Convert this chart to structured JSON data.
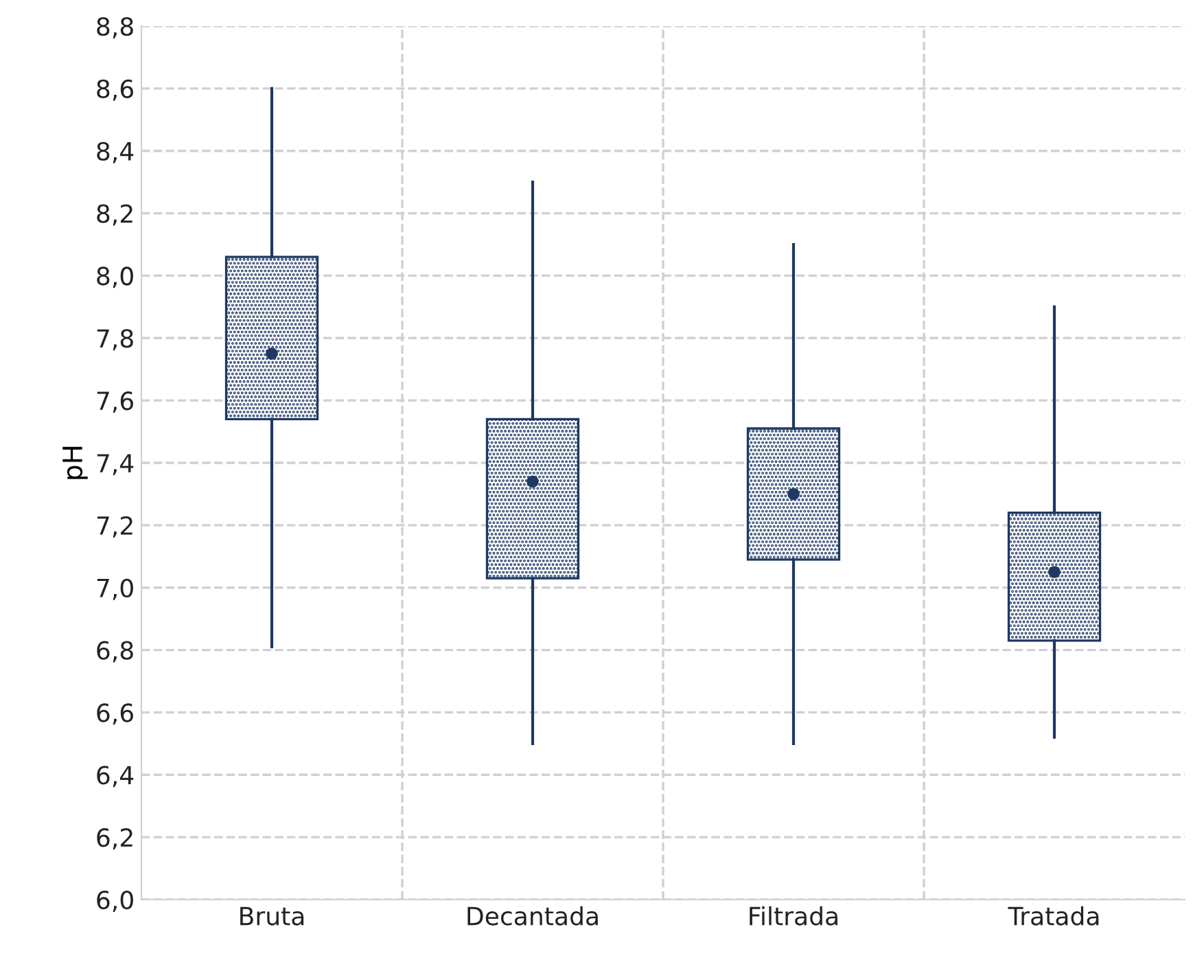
{
  "chart_data": {
    "type": "box",
    "ylabel": "pH",
    "categories": [
      "Bruta",
      "Decantada",
      "Filtrada",
      "Tratada"
    ],
    "boxes": [
      {
        "low": 6.81,
        "q1": 7.54,
        "median": 7.75,
        "q3": 8.06,
        "high": 8.6
      },
      {
        "low": 6.5,
        "q1": 7.03,
        "median": 7.34,
        "q3": 7.54,
        "high": 8.3
      },
      {
        "low": 6.5,
        "q1": 7.09,
        "median": 7.3,
        "q3": 7.51,
        "high": 8.1
      },
      {
        "low": 6.52,
        "q1": 6.83,
        "median": 7.05,
        "q3": 7.24,
        "high": 7.9
      }
    ],
    "color": "#1f3864",
    "ylim": [
      6.0,
      8.8
    ],
    "yticks": [
      {
        "value": 6.0,
        "label": "6,0"
      },
      {
        "value": 6.2,
        "label": "6,2"
      },
      {
        "value": 6.4,
        "label": "6,4"
      },
      {
        "value": 6.6,
        "label": "6,6"
      },
      {
        "value": 6.8,
        "label": "6,8"
      },
      {
        "value": 7.0,
        "label": "7,0"
      },
      {
        "value": 7.2,
        "label": "7,2"
      },
      {
        "value": 7.4,
        "label": "7,4"
      },
      {
        "value": 7.6,
        "label": "7,6"
      },
      {
        "value": 7.8,
        "label": "7,8"
      },
      {
        "value": 8.0,
        "label": "8,0"
      },
      {
        "value": 8.2,
        "label": "8,2"
      },
      {
        "value": 8.4,
        "label": "8,4"
      },
      {
        "value": 8.6,
        "label": "8,6"
      },
      {
        "value": 8.8,
        "label": "8,8"
      }
    ],
    "grid": true
  }
}
